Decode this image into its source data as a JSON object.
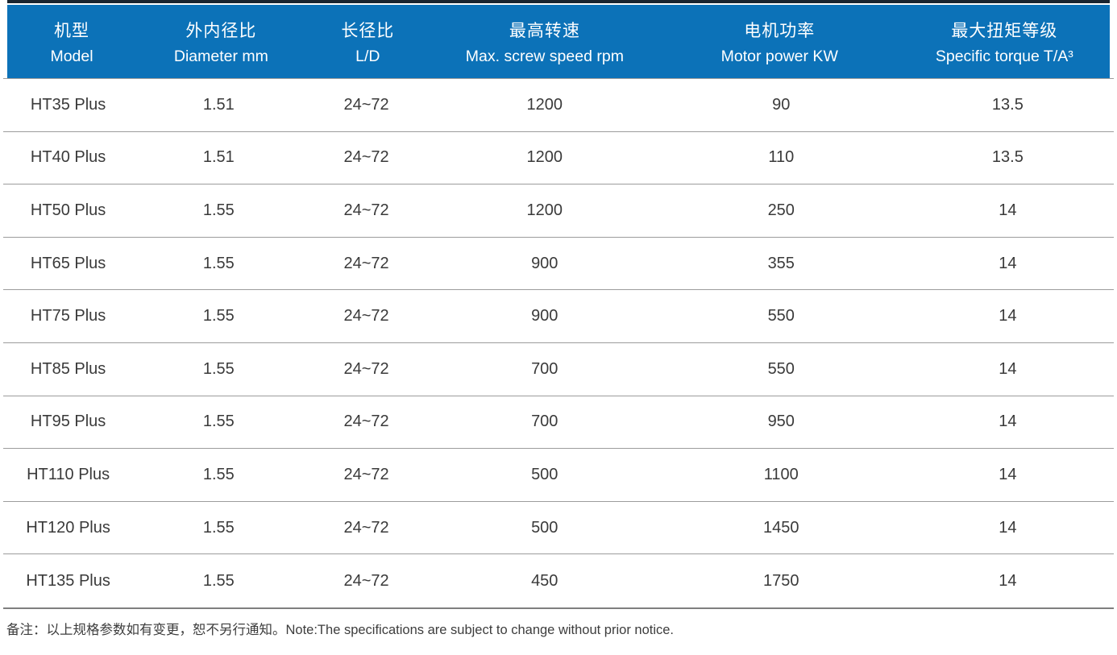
{
  "theme": {
    "header_bg": "#0c72b8",
    "top_bar": "#1b2530",
    "divider": "#9c9c9c",
    "heavy_line": "#7f7f7f",
    "text": "#3a3a3a"
  },
  "table": {
    "columns": [
      {
        "cn": "机型",
        "en": "Model"
      },
      {
        "cn": "外内径比",
        "en": "Diameter mm"
      },
      {
        "cn": "长径比",
        "en": "L/D"
      },
      {
        "cn": "最高转速",
        "en": "Max. screw speed rpm"
      },
      {
        "cn": "电机功率",
        "en": "Motor power KW"
      },
      {
        "cn": "最大扭矩等级",
        "en": "Specific torque T/A³"
      }
    ],
    "rows": [
      {
        "model": "HT35 Plus",
        "diameter": "1.51",
        "ld": "24~72",
        "speed": "1200",
        "power": "90",
        "torque": "13.5"
      },
      {
        "model": "HT40 Plus",
        "diameter": "1.51",
        "ld": "24~72",
        "speed": "1200",
        "power": "110",
        "torque": "13.5"
      },
      {
        "model": "HT50 Plus",
        "diameter": "1.55",
        "ld": "24~72",
        "speed": "1200",
        "power": "250",
        "torque": "14"
      },
      {
        "model": "HT65 Plus",
        "diameter": "1.55",
        "ld": "24~72",
        "speed": "900",
        "power": "355",
        "torque": "14"
      },
      {
        "model": "HT75 Plus",
        "diameter": "1.55",
        "ld": "24~72",
        "speed": "900",
        "power": "550",
        "torque": "14"
      },
      {
        "model": "HT85 Plus",
        "diameter": "1.55",
        "ld": "24~72",
        "speed": "700",
        "power": "550",
        "torque": "14"
      },
      {
        "model": "HT95 Plus",
        "diameter": "1.55",
        "ld": "24~72",
        "speed": "700",
        "power": "950",
        "torque": "14"
      },
      {
        "model": "HT110 Plus",
        "diameter": "1.55",
        "ld": "24~72",
        "speed": "500",
        "power": "1100",
        "torque": "14"
      },
      {
        "model": "HT120 Plus",
        "diameter": "1.55",
        "ld": "24~72",
        "speed": "500",
        "power": "1450",
        "torque": "14"
      },
      {
        "model": "HT135 Plus",
        "diameter": "1.55",
        "ld": "24~72",
        "speed": "450",
        "power": "1750",
        "torque": "14"
      }
    ]
  },
  "footer": {
    "note": "备注：以上规格参数如有变更，恕不另行通知。Note:The specifications are subject to change without prior notice."
  }
}
